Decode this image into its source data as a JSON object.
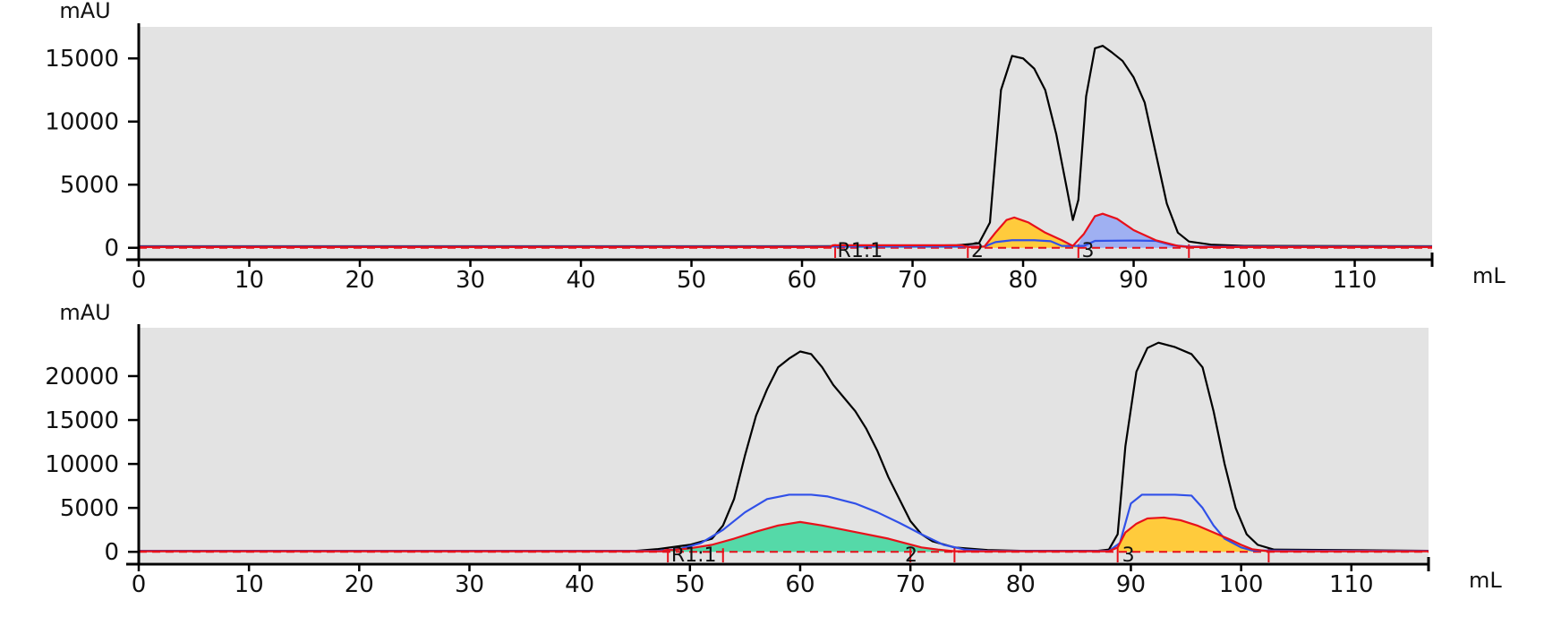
{
  "chart_data": [
    {
      "type": "line",
      "ylabel": "mAU",
      "xlabel": "mL",
      "xlim": [
        0,
        117
      ],
      "ylim": [
        -800,
        17500
      ],
      "yticks": [
        0,
        5000,
        10000,
        15000
      ],
      "xticks": [
        0,
        10,
        20,
        30,
        40,
        50,
        60,
        70,
        80,
        90,
        100,
        110
      ],
      "grid": false,
      "colors": {
        "background": "#e3e3e3",
        "black": "#000000",
        "blue": "#3050e8",
        "red": "#e8101a",
        "green": "#55d9a8",
        "yellow": "#ffcb3c",
        "lavender": "#9fb0f2"
      },
      "series": [
        {
          "color": "black",
          "points": [
            [
              0,
              120
            ],
            [
              60,
              120
            ],
            [
              70,
              140
            ],
            [
              74,
              200
            ],
            [
              76,
              350
            ],
            [
              77,
              2000
            ],
            [
              78,
              12500
            ],
            [
              79,
              15200
            ],
            [
              80,
              15000
            ],
            [
              81,
              14200
            ],
            [
              82,
              12500
            ],
            [
              83,
              9000
            ],
            [
              84,
              4500
            ],
            [
              84.5,
              2200
            ],
            [
              85,
              3800
            ],
            [
              85.7,
              12000
            ],
            [
              86.5,
              15800
            ],
            [
              87.2,
              16000
            ],
            [
              88,
              15500
            ],
            [
              89,
              14800
            ],
            [
              90,
              13500
            ],
            [
              91,
              11500
            ],
            [
              92,
              7500
            ],
            [
              93,
              3500
            ],
            [
              94,
              1200
            ],
            [
              95,
              500
            ],
            [
              97,
              250
            ],
            [
              100,
              150
            ],
            [
              117,
              120
            ]
          ]
        },
        {
          "color": "blue",
          "points": [
            [
              0,
              100
            ],
            [
              76.5,
              100
            ],
            [
              77.5,
              450
            ],
            [
              79,
              600
            ],
            [
              81,
              600
            ],
            [
              82.5,
              520
            ],
            [
              83.5,
              150
            ],
            [
              85.5,
              150
            ],
            [
              86.5,
              550
            ],
            [
              90,
              580
            ],
            [
              92,
              550
            ],
            [
              93.5,
              200
            ],
            [
              95,
              100
            ],
            [
              117,
              100
            ]
          ]
        },
        {
          "color": "red",
          "points": [
            [
              0,
              60
            ],
            [
              62.5,
              60
            ],
            [
              62.8,
              200
            ],
            [
              74.5,
              200
            ],
            [
              75,
              60
            ],
            [
              76.5,
              100
            ],
            [
              77.5,
              1200
            ],
            [
              78.5,
              2200
            ],
            [
              79.2,
              2400
            ],
            [
              80.5,
              2000
            ],
            [
              82,
              1200
            ],
            [
              83.5,
              600
            ],
            [
              84.5,
              150
            ],
            [
              85.5,
              1100
            ],
            [
              86.5,
              2500
            ],
            [
              87.2,
              2700
            ],
            [
              88.5,
              2300
            ],
            [
              90,
              1400
            ],
            [
              92,
              600
            ],
            [
              94,
              150
            ],
            [
              95,
              60
            ],
            [
              117,
              60
            ]
          ]
        }
      ],
      "fills": [
        {
          "color": "green",
          "points": [
            [
              63,
              0
            ],
            [
              75,
              0
            ],
            [
              75,
              150
            ],
            [
              63,
              150
            ]
          ]
        },
        {
          "color": "yellow",
          "points": [
            [
              75,
              0
            ],
            [
              85,
              0
            ],
            [
              85,
              150
            ],
            [
              84,
              300
            ],
            [
              82,
              1200
            ],
            [
              80.5,
              2000
            ],
            [
              79.2,
              2400
            ],
            [
              78.5,
              2200
            ],
            [
              77.5,
              1200
            ],
            [
              76.5,
              100
            ],
            [
              75,
              60
            ]
          ]
        },
        {
          "color": "lavender",
          "points": [
            [
              85,
              0
            ],
            [
              95,
              0
            ],
            [
              95,
              60
            ],
            [
              94,
              150
            ],
            [
              92,
              600
            ],
            [
              90,
              1400
            ],
            [
              88.5,
              2300
            ],
            [
              87.2,
              2700
            ],
            [
              86.5,
              2500
            ],
            [
              85.5,
              1100
            ],
            [
              85,
              300
            ]
          ]
        }
      ],
      "fractions": {
        "boundaries": [
          63,
          75,
          85,
          95
        ],
        "labels": [
          {
            "x": 63.2,
            "text": "R1:1"
          },
          {
            "x": 75.3,
            "text": "2"
          },
          {
            "x": 85.3,
            "text": "3"
          }
        ]
      }
    },
    {
      "type": "line",
      "ylabel": "mAU",
      "xlabel": "mL",
      "xlim": [
        0,
        117
      ],
      "ylim": [
        -1200,
        25500
      ],
      "yticks": [
        0,
        5000,
        10000,
        15000,
        20000
      ],
      "xticks": [
        0,
        10,
        20,
        30,
        40,
        50,
        60,
        70,
        80,
        90,
        100,
        110
      ],
      "grid": false,
      "colors": {
        "background": "#e3e3e3",
        "black": "#000000",
        "blue": "#3050e8",
        "red": "#e8101a",
        "green": "#55d9a8",
        "yellow": "#ffcb3c"
      },
      "series": [
        {
          "color": "black",
          "points": [
            [
              0,
              100
            ],
            [
              45,
              100
            ],
            [
              47,
              300
            ],
            [
              50,
              800
            ],
            [
              52,
              1500
            ],
            [
              53,
              3000
            ],
            [
              54,
              6000
            ],
            [
              55,
              11000
            ],
            [
              56,
              15500
            ],
            [
              57,
              18500
            ],
            [
              58,
              21000
            ],
            [
              59,
              22000
            ],
            [
              60,
              22800
            ],
            [
              61,
              22500
            ],
            [
              62,
              21000
            ],
            [
              63,
              19000
            ],
            [
              64,
              17500
            ],
            [
              65,
              16000
            ],
            [
              66,
              14000
            ],
            [
              67,
              11500
            ],
            [
              68,
              8500
            ],
            [
              69,
              6000
            ],
            [
              70,
              3500
            ],
            [
              71,
              2000
            ],
            [
              72,
              1200
            ],
            [
              74,
              500
            ],
            [
              77,
              200
            ],
            [
              80,
              120
            ],
            [
              87,
              120
            ],
            [
              88,
              250
            ],
            [
              88.8,
              2000
            ],
            [
              89.5,
              12000
            ],
            [
              90.5,
              20500
            ],
            [
              91.5,
              23200
            ],
            [
              92.5,
              23800
            ],
            [
              94,
              23300
            ],
            [
              95.5,
              22500
            ],
            [
              96.5,
              21000
            ],
            [
              97.5,
              16000
            ],
            [
              98.5,
              10000
            ],
            [
              99.5,
              5000
            ],
            [
              100.5,
              2000
            ],
            [
              101.5,
              800
            ],
            [
              103,
              250
            ],
            [
              117,
              120
            ]
          ]
        },
        {
          "color": "blue",
          "points": [
            [
              0,
              100
            ],
            [
              47,
              100
            ],
            [
              49,
              300
            ],
            [
              51,
              1000
            ],
            [
              53,
              2500
            ],
            [
              55,
              4500
            ],
            [
              57,
              6000
            ],
            [
              59,
              6500
            ],
            [
              61,
              6500
            ],
            [
              62.5,
              6300
            ],
            [
              65,
              5500
            ],
            [
              67,
              4500
            ],
            [
              69,
              3300
            ],
            [
              71,
              2000
            ],
            [
              73,
              800
            ],
            [
              75,
              250
            ],
            [
              77,
              100
            ],
            [
              88,
              100
            ],
            [
              89,
              1000
            ],
            [
              90,
              5500
            ],
            [
              91,
              6500
            ],
            [
              92,
              6500
            ],
            [
              94,
              6500
            ],
            [
              95.5,
              6400
            ],
            [
              96.5,
              5000
            ],
            [
              97.5,
              3000
            ],
            [
              98.5,
              1500
            ],
            [
              100,
              500
            ],
            [
              101,
              150
            ],
            [
              117,
              100
            ]
          ]
        },
        {
          "color": "red",
          "points": [
            [
              0,
              60
            ],
            [
              47.5,
              60
            ],
            [
              47.8,
              200
            ],
            [
              48.5,
              200
            ],
            [
              50,
              400
            ],
            [
              52,
              800
            ],
            [
              54,
              1500
            ],
            [
              56,
              2300
            ],
            [
              58,
              3000
            ],
            [
              60,
              3400
            ],
            [
              62,
              3000
            ],
            [
              64,
              2500
            ],
            [
              66,
              2000
            ],
            [
              68,
              1500
            ],
            [
              69.5,
              1000
            ],
            [
              71,
              500
            ],
            [
              72.5,
              250
            ],
            [
              74,
              60
            ],
            [
              88,
              60
            ],
            [
              88.8,
              500
            ],
            [
              89.5,
              2200
            ],
            [
              90.5,
              3200
            ],
            [
              91.5,
              3800
            ],
            [
              93,
              3900
            ],
            [
              94.5,
              3600
            ],
            [
              96,
              3000
            ],
            [
              97.5,
              2200
            ],
            [
              99,
              1400
            ],
            [
              100,
              800
            ],
            [
              101,
              300
            ],
            [
              102.5,
              60
            ],
            [
              117,
              60
            ]
          ]
        }
      ],
      "fills": [
        {
          "color": "green",
          "points": [
            [
              48,
              0
            ],
            [
              74,
              0
            ],
            [
              74,
              60
            ],
            [
              72.5,
              250
            ],
            [
              71,
              500
            ],
            [
              69.5,
              1000
            ],
            [
              68,
              1500
            ],
            [
              66,
              2000
            ],
            [
              64,
              2500
            ],
            [
              62,
              3000
            ],
            [
              60,
              3400
            ],
            [
              58,
              3000
            ],
            [
              56,
              2300
            ],
            [
              54,
              1500
            ],
            [
              52,
              800
            ],
            [
              50,
              400
            ],
            [
              48.5,
              200
            ],
            [
              48,
              200
            ]
          ]
        },
        {
          "color": "yellow",
          "points": [
            [
              88.8,
              0
            ],
            [
              102.5,
              0
            ],
            [
              102.5,
              60
            ],
            [
              101,
              300
            ],
            [
              100,
              800
            ],
            [
              99,
              1400
            ],
            [
              97.5,
              2200
            ],
            [
              96,
              3000
            ],
            [
              94.5,
              3600
            ],
            [
              93,
              3900
            ],
            [
              91.5,
              3800
            ],
            [
              90.5,
              3200
            ],
            [
              89.5,
              2200
            ],
            [
              88.8,
              500
            ]
          ]
        }
      ],
      "fractions": {
        "boundaries": [
          48,
          53,
          70,
          74,
          88.8,
          102.5
        ],
        "labels": [
          {
            "x": 48.3,
            "text": "R1:1"
          },
          {
            "x": 69.5,
            "text": "2"
          },
          {
            "x": 89.2,
            "text": "3"
          }
        ]
      }
    }
  ]
}
